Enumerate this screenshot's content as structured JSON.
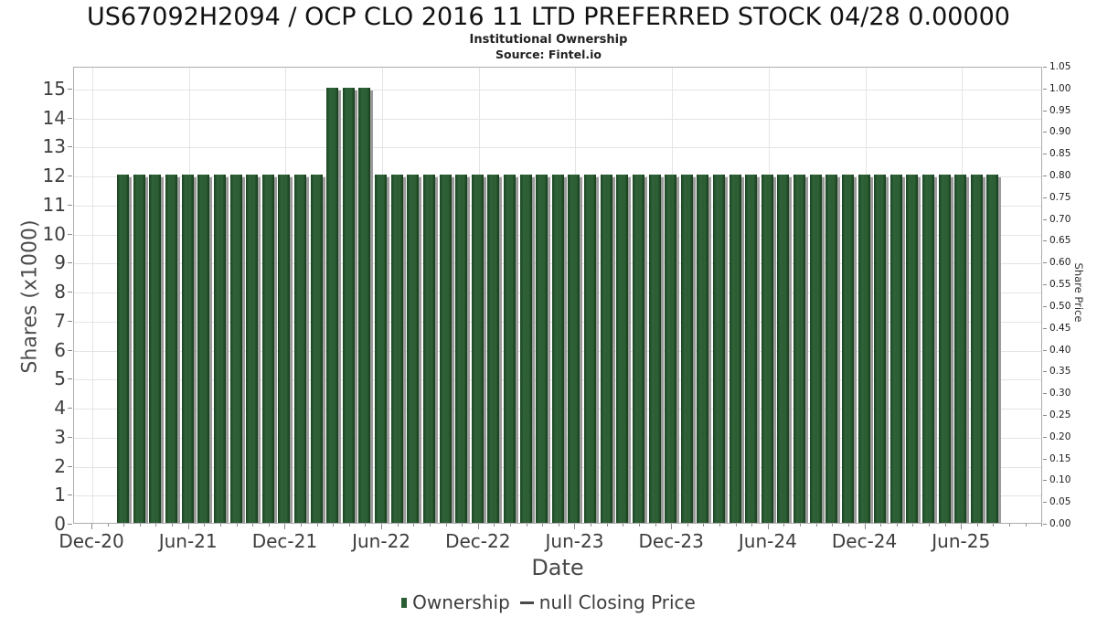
{
  "header": {
    "title": "US67092H2094 / OCP CLO 2016 11 LTD PREFERRED STOCK 04/28 0.00000",
    "subtitle": "Institutional Ownership",
    "source": "Source: Fintel.io"
  },
  "axes": {
    "xlabel": "Date",
    "ylabel_left": "Shares (x1000)",
    "ylabel_right": "Share Price"
  },
  "legend": {
    "items": [
      {
        "label": "Ownership",
        "swatch": "square",
        "color": "#2a5c31"
      },
      {
        "label": "null Closing Price",
        "swatch": "dash",
        "color": "#4a4a4a"
      }
    ]
  },
  "chart_data": {
    "type": "bar",
    "title": "US67092H2094 / OCP CLO 2016 11 LTD PREFERRED STOCK 04/28 0.00000",
    "subtitle": "Institutional Ownership",
    "source": "Source: Fintel.io",
    "series_name": "Ownership",
    "secondary_series_name": "null Closing Price",
    "secondary_series_values": null,
    "xlabel": "Date",
    "ylabel": "Shares (x1000)",
    "ylabel_right": "Share Price",
    "grid": true,
    "legend_position": "bottom",
    "ylim_left": [
      0,
      15.75
    ],
    "ylim_right": [
      0,
      1.05
    ],
    "bar_color": "#2a5c31",
    "x": [
      "Feb-21",
      "Mar-21",
      "Apr-21",
      "May-21",
      "Jun-21",
      "Jul-21",
      "Aug-21",
      "Sep-21",
      "Oct-21",
      "Nov-21",
      "Dec-21",
      "Jan-22",
      "Feb-22",
      "Mar-22",
      "Apr-22",
      "May-22",
      "Jun-22",
      "Jul-22",
      "Aug-22",
      "Sep-22",
      "Oct-22",
      "Nov-22",
      "Dec-22",
      "Jan-23",
      "Feb-23",
      "Mar-23",
      "Apr-23",
      "May-23",
      "Jun-23",
      "Jul-23",
      "Aug-23",
      "Sep-23",
      "Oct-23",
      "Nov-23",
      "Dec-23",
      "Jan-24",
      "Feb-24",
      "Mar-24",
      "Apr-24",
      "May-24",
      "Jun-24",
      "Jul-24",
      "Aug-24",
      "Sep-24",
      "Oct-24",
      "Nov-24",
      "Dec-24",
      "Jan-25",
      "Feb-25",
      "Mar-25",
      "Apr-25",
      "May-25",
      "Jun-25",
      "Jul-25",
      "Aug-25"
    ],
    "values": [
      12,
      12,
      12,
      12,
      12,
      12,
      12,
      12,
      12,
      12,
      12,
      12,
      12,
      15,
      15,
      15,
      12,
      12,
      12,
      12,
      12,
      12,
      12,
      12,
      12,
      12,
      12,
      12,
      12,
      12,
      12,
      12,
      12,
      12,
      12,
      12,
      12,
      12,
      12,
      12,
      12,
      12,
      12,
      12,
      12,
      12,
      12,
      12,
      12,
      12,
      12,
      12,
      12,
      12,
      12
    ],
    "left_axis_ticks": [
      "0",
      "1",
      "2",
      "3",
      "4",
      "5",
      "6",
      "7",
      "8",
      "9",
      "10",
      "11",
      "12",
      "13",
      "14",
      "15"
    ],
    "right_axis_ticks": [
      "0.00",
      "0.05",
      "0.10",
      "0.15",
      "0.20",
      "0.25",
      "0.30",
      "0.35",
      "0.40",
      "0.45",
      "0.50",
      "0.55",
      "0.60",
      "0.65",
      "0.70",
      "0.75",
      "0.80",
      "0.85",
      "0.90",
      "0.95",
      "1.00",
      "1.05"
    ],
    "x_axis_ticks": [
      {
        "label": "Dec-20",
        "month_index": 0
      },
      {
        "label": "Jun-21",
        "month_index": 6
      },
      {
        "label": "Dec-21",
        "month_index": 12
      },
      {
        "label": "Jun-22",
        "month_index": 18
      },
      {
        "label": "Dec-22",
        "month_index": 24
      },
      {
        "label": "Jun-23",
        "month_index": 30
      },
      {
        "label": "Dec-23",
        "month_index": 36
      },
      {
        "label": "Jun-24",
        "month_index": 42
      },
      {
        "label": "Dec-24",
        "month_index": 48
      },
      {
        "label": "Jun-25",
        "month_index": 54
      }
    ]
  }
}
